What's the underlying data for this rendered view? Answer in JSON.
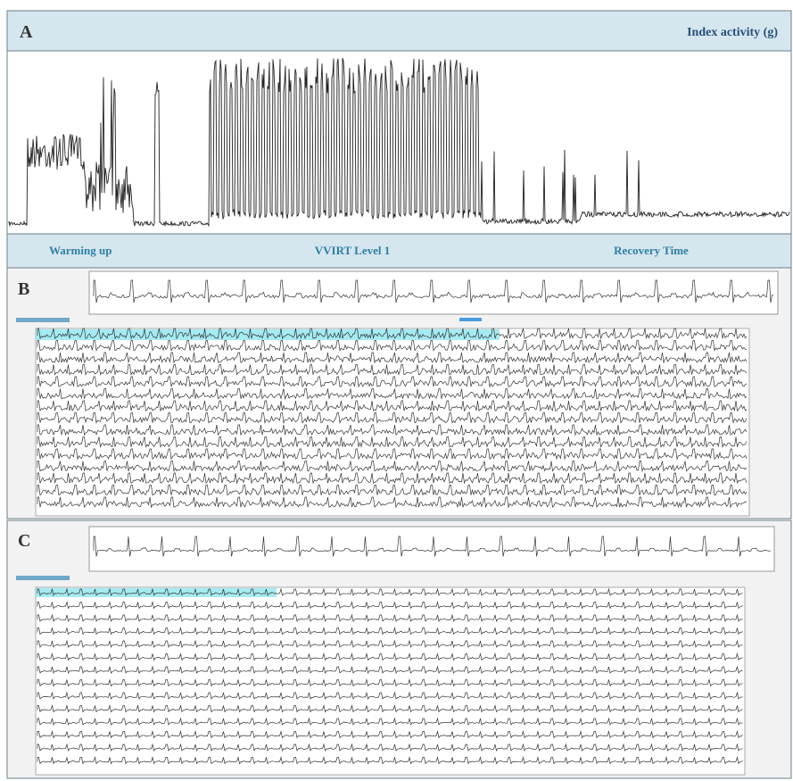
{
  "panel_a": {
    "label": "A",
    "title": "Index activity (g)",
    "phases": [
      "Warming up",
      "VVIRT Level 1",
      "Recovery Time"
    ]
  },
  "panel_b": {
    "label": "B"
  },
  "panel_c": {
    "label": "C"
  }
}
